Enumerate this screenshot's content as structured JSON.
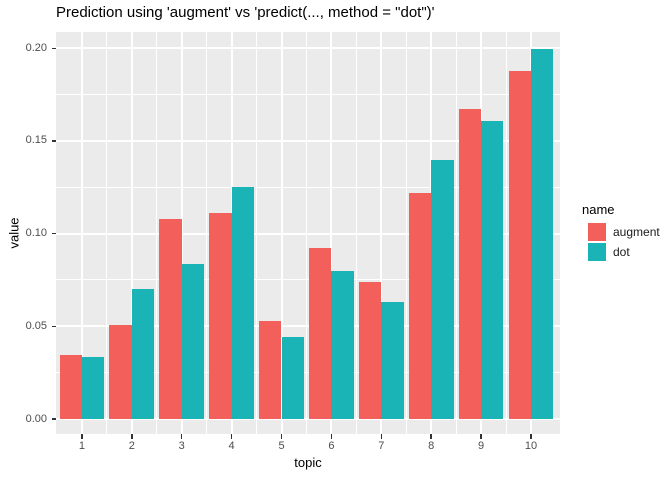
{
  "title": "Prediction using 'augment' vs 'predict(..., method = \"dot\")'",
  "axes": {
    "x_title": "topic",
    "y_title": "value",
    "x_tick_labels": [
      "1",
      "2",
      "3",
      "4",
      "5",
      "6",
      "7",
      "8",
      "9",
      "10"
    ],
    "y_tick_labels": [
      "0.00",
      "0.05",
      "0.10",
      "0.15",
      "0.20"
    ]
  },
  "legend": {
    "title": "name",
    "position": "right"
  },
  "colors": {
    "panel_background": "#EBEBEB",
    "gridline": "#FFFFFF",
    "tick_text": "#4D4D4D",
    "augment": "#F3605B",
    "dot": "#1AB4B6"
  },
  "chart_data": {
    "type": "bar",
    "grouping": "dodged",
    "title": "Prediction using 'augment' vs 'predict(..., method = \"dot\")'",
    "xlabel": "topic",
    "ylabel": "value",
    "categories": [
      1,
      2,
      3,
      4,
      5,
      6,
      7,
      8,
      9,
      10
    ],
    "series": [
      {
        "name": "augment",
        "color": "#F3605B",
        "values": [
          0.0345,
          0.0505,
          0.108,
          0.111,
          0.053,
          0.092,
          0.074,
          0.122,
          0.1675,
          0.188
        ]
      },
      {
        "name": "dot",
        "color": "#1AB4B6",
        "values": [
          0.0335,
          0.07,
          0.0835,
          0.125,
          0.0445,
          0.08,
          0.063,
          0.14,
          0.161,
          0.1995
        ]
      }
    ],
    "ylim": [
      0,
      0.209
    ],
    "y_major_ticks": [
      0,
      0.05,
      0.1,
      0.15,
      0.2
    ],
    "y_minor_ticks": [
      0.025,
      0.075,
      0.125,
      0.175
    ],
    "grid": true,
    "legend_title": "name",
    "legend_position": "right"
  }
}
